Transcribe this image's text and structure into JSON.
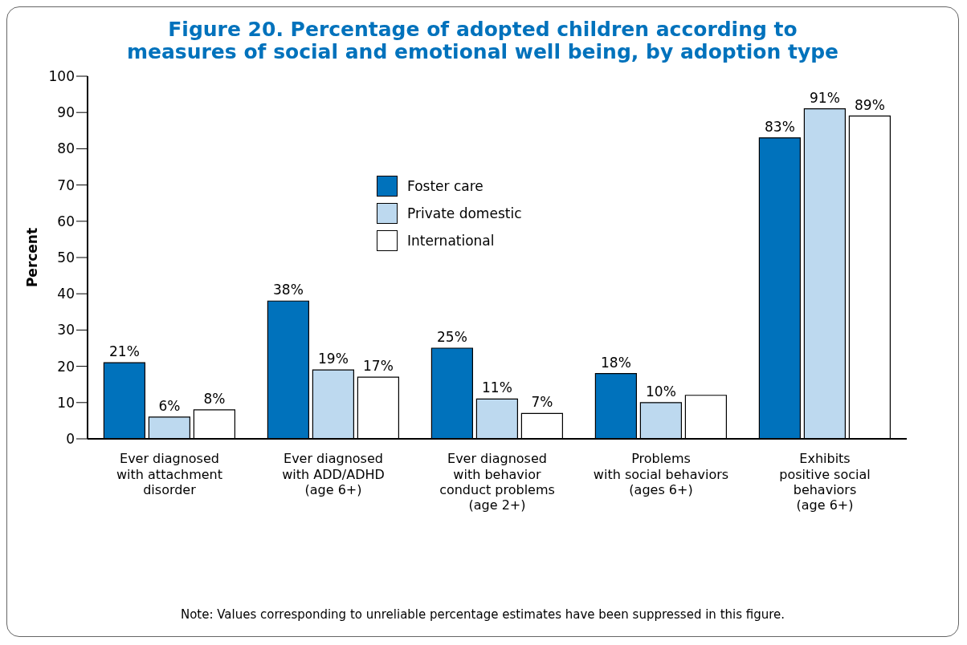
{
  "chart_data": {
    "type": "bar",
    "title": "Figure 20. Percentage of adopted children according to measures of social and emotional well being, by adoption type",
    "ylabel": "Percent",
    "categories": [
      "Ever diagnosed\nwith attachment\ndisorder",
      "Ever diagnosed\nwith ADD/ADHD\n(age 6+)",
      "Ever diagnosed\nwith behavior\nconduct problems\n(age 2+)",
      "Problems\nwith social behaviors\n(ages 6+)",
      "Exhibits\npositive social\nbehaviors\n(age 6+)"
    ],
    "series": [
      {
        "name": "Foster care",
        "color": "#0072bc",
        "values": [
          21,
          38,
          25,
          18,
          83
        ],
        "value_labels": [
          "21%",
          "38%",
          "25%",
          "18%",
          "83%"
        ]
      },
      {
        "name": "Private domestic",
        "color": "#bdd9ef",
        "values": [
          6,
          19,
          11,
          10,
          91
        ],
        "value_labels": [
          "6%",
          "19%",
          "11%",
          "10%",
          "91%"
        ]
      },
      {
        "name": "International",
        "color": "#ffffff",
        "values": [
          8,
          17,
          7,
          12,
          89
        ],
        "value_labels": [
          "8%",
          "17%",
          "7%",
          null,
          "89%"
        ]
      }
    ],
    "ylim": [
      0,
      100
    ],
    "yticks": [
      0,
      10,
      20,
      30,
      40,
      50,
      60,
      70,
      80,
      90,
      100
    ],
    "grid": false,
    "legend": "top",
    "annotations": [
      "Note: Values corresponding to unreliable percentage estimates have been suppressed in this figure."
    ]
  }
}
